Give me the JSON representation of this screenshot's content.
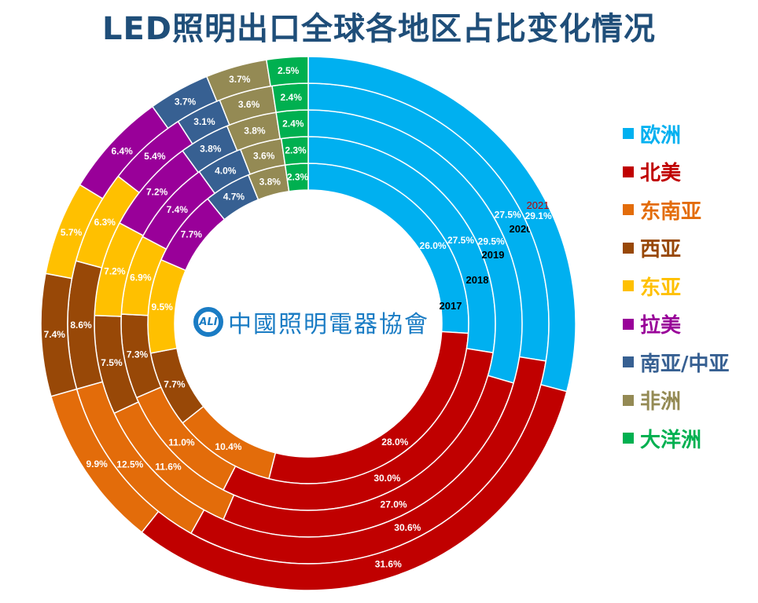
{
  "chart_data": {
    "type": "donut",
    "title": "LED照明出口全球各地区占比变化情况",
    "rings": [
      "2017",
      "2018",
      "2019",
      "2020",
      "2021"
    ],
    "ring_order": "inner-to-outer",
    "value_unit": "%",
    "legend_position": "right",
    "series": [
      {
        "name": "欧洲",
        "color": "#00b0f0",
        "values": [
          26.0,
          27.5,
          29.5,
          27.5,
          29.1
        ]
      },
      {
        "name": "北美",
        "color": "#c00000",
        "values": [
          28.0,
          30.0,
          27.0,
          30.6,
          31.6
        ]
      },
      {
        "name": "东南亚",
        "color": "#e36c0a",
        "values": [
          10.4,
          11.0,
          11.6,
          12.5,
          9.9
        ]
      },
      {
        "name": "西亚",
        "color": "#984807",
        "values": [
          7.7,
          7.3,
          7.5,
          8.6,
          7.4
        ]
      },
      {
        "name": "东亚",
        "color": "#ffc000",
        "values": [
          9.5,
          6.9,
          7.2,
          6.3,
          5.7
        ]
      },
      {
        "name": "拉美",
        "color": "#990099",
        "values": [
          7.7,
          7.4,
          7.2,
          5.4,
          6.4
        ]
      },
      {
        "name": "南亚/中亚",
        "color": "#376092",
        "values": [
          4.7,
          4.0,
          3.8,
          3.1,
          3.7
        ]
      },
      {
        "name": "非洲",
        "color": "#948a54",
        "values": [
          3.8,
          3.6,
          3.8,
          3.6,
          3.7
        ]
      },
      {
        "name": "大洋洲",
        "color": "#00b050",
        "values": [
          2.3,
          2.3,
          2.4,
          2.4,
          2.5
        ]
      }
    ],
    "ring_label_colors": [
      "#000000",
      "#000000",
      "#000000",
      "#000000",
      "#c00000"
    ]
  },
  "logo": {
    "mark": "ALI",
    "text": "中國照明電器協會"
  }
}
